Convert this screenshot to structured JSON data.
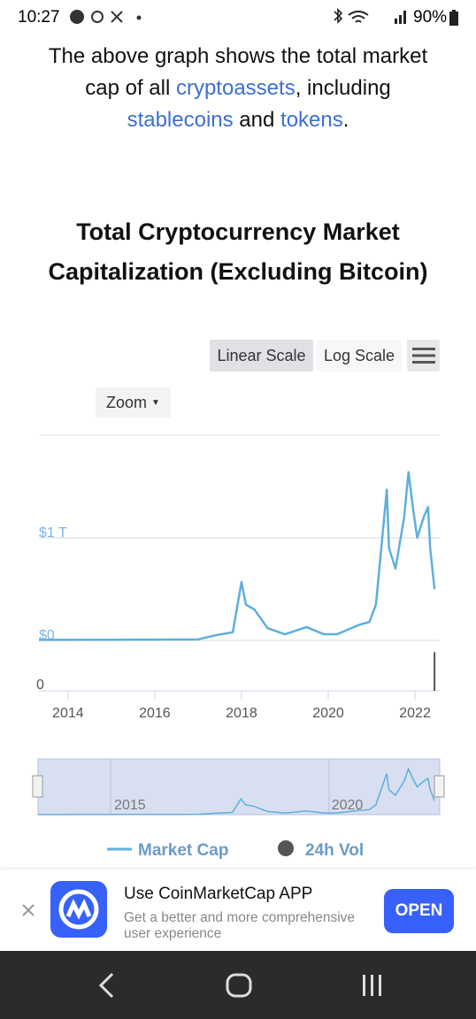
{
  "status_bar": {
    "time": "10:27",
    "battery": "90%"
  },
  "intro": {
    "text_1": "The above graph shows the total market cap of all ",
    "link_1": "cryptoassets",
    "text_2": ", including ",
    "link_2": "stablecoins",
    "text_3": " and ",
    "link_3": "tokens",
    "text_4": "."
  },
  "chart_title": "Total Cryptocurrency Market Capitalization (Excluding Bitcoin)",
  "controls": {
    "linear": "Linear Scale",
    "log": "Log Scale",
    "zoom": "Zoom"
  },
  "chart_data": {
    "type": "line",
    "xlim": [
      2013.33,
      2022.57
    ],
    "xticks": [
      2014,
      2016,
      2018,
      2020,
      2022
    ],
    "ylim": [
      0,
      2000000000000
    ],
    "yticks": [
      {
        "value": 0,
        "label": "$0"
      },
      {
        "value": 1000000000000,
        "label": "$1 T"
      }
    ],
    "grid": true,
    "series": [
      {
        "name": "Market Cap",
        "color": "#5eafdc",
        "x": [
          2013.33,
          2015.0,
          2017.0,
          2017.4,
          2017.8,
          2018.0,
          2018.1,
          2018.3,
          2018.6,
          2019.0,
          2019.5,
          2019.9,
          2020.2,
          2020.7,
          2020.95,
          2021.1,
          2021.35,
          2021.4,
          2021.55,
          2021.75,
          2021.85,
          2021.95,
          2022.05,
          2022.2,
          2022.3,
          2022.35,
          2022.45
        ],
        "values": [
          5000000000,
          6000000000,
          10000000000,
          50000000000,
          80000000000,
          570000000000,
          350000000000,
          300000000000,
          120000000000,
          60000000000,
          130000000000,
          60000000000,
          60000000000,
          150000000000,
          180000000000,
          350000000000,
          1470000000000,
          900000000000,
          700000000000,
          1200000000000,
          1640000000000,
          1300000000000,
          1000000000000,
          1200000000000,
          1300000000000,
          900000000000,
          500000000000
        ]
      },
      {
        "name": "24h Vol",
        "color": "#555555",
        "axis": "vol",
        "x": [
          2022.45
        ],
        "values": [
          95000000000
        ]
      }
    ],
    "vol_ylim": [
      0,
      100000000000
    ],
    "vol_yticks": [
      0
    ],
    "navigator": {
      "xticks": [
        2015,
        2020
      ]
    }
  },
  "ad": {
    "title": "Use CoinMarketCap APP",
    "text": "Get a better and more comprehensive user experience",
    "button": "OPEN"
  }
}
